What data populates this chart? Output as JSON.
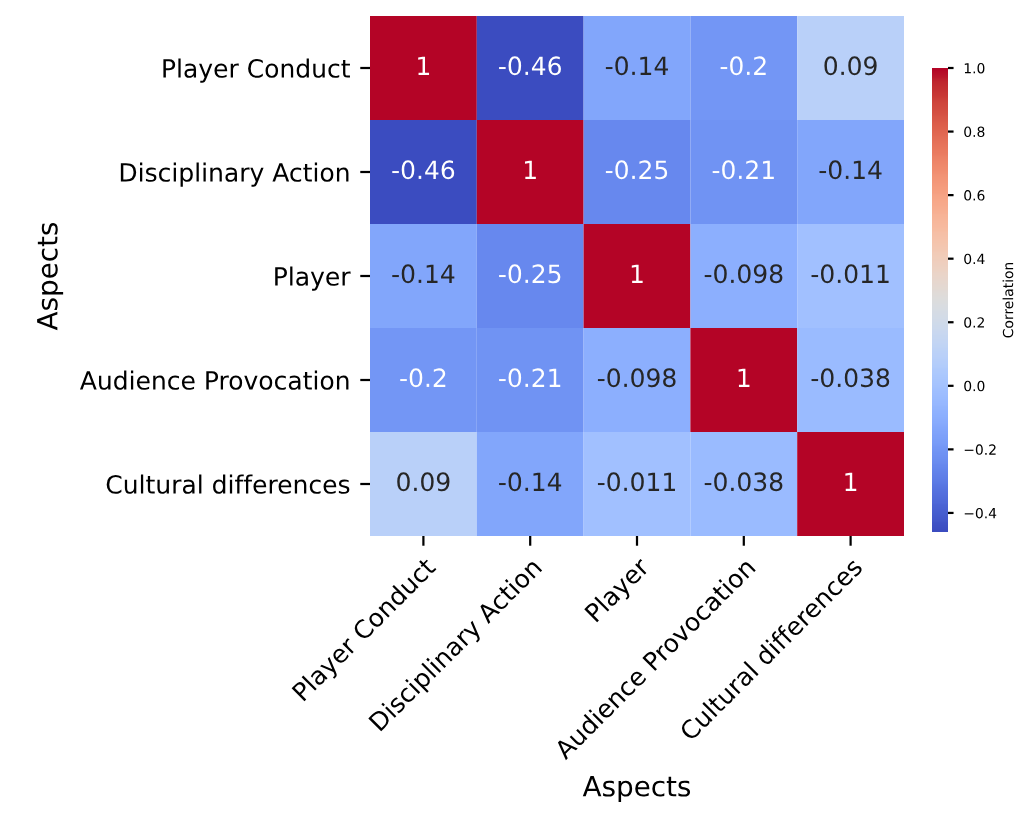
{
  "chart_data": {
    "type": "heatmap",
    "xlabel": "Aspects",
    "ylabel": "Aspects",
    "clabel": "Correlation",
    "categories": [
      "Player Conduct",
      "Disciplinary Action",
      "Player",
      "Audience Provocation",
      "Cultural differences"
    ],
    "y_categories": [
      "Player Conduct",
      "Disciplinary Action",
      "Player",
      "Audience Provocation",
      "Cultural differences"
    ],
    "cells": [
      [
        1,
        -0.46,
        -0.14,
        -0.2,
        0.09
      ],
      [
        -0.46,
        1,
        -0.25,
        -0.21,
        -0.14
      ],
      [
        -0.14,
        -0.25,
        1,
        -0.098,
        -0.011
      ],
      [
        -0.2,
        -0.21,
        -0.098,
        1,
        -0.038
      ],
      [
        0.09,
        -0.14,
        -0.011,
        -0.038,
        1
      ]
    ],
    "clim": [
      -0.46,
      1.0
    ],
    "cticks": [
      {
        "value": -0.4,
        "label": "−0.4"
      },
      {
        "value": -0.2,
        "label": "−0.2"
      },
      {
        "value": 0,
        "label": "0.0"
      },
      0.2,
      0.4,
      0.6,
      0.8,
      {
        "value": 1,
        "label": "1.0"
      }
    ],
    "data_labels": true
  }
}
